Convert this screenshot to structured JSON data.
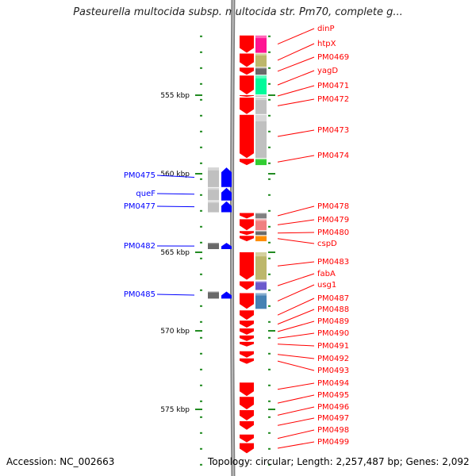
{
  "title": "Pasteurella multocida subsp. multocida str. Pm70, complete g...",
  "footer": {
    "accession": "Accession: NC_002663",
    "topology": "Topology: circular; Length: 2,257,487 bp; Genes: 2,092"
  },
  "colors": {
    "forward": "#ff0000",
    "reverse": "#0000ff",
    "axis_tick": "#228b22",
    "backbone": "#808080"
  },
  "chart_data": {
    "type": "genome-map",
    "kbp_range": [
      551.0,
      579.5
    ],
    "kbp_labels": [
      {
        "text": "555 kbp",
        "kbp": 555
      },
      {
        "text": "560 kbp",
        "kbp": 560
      },
      {
        "text": "565 kbp",
        "kbp": 565
      },
      {
        "text": "570 kbp",
        "kbp": 570
      },
      {
        "text": "575 kbp",
        "kbp": 575
      }
    ],
    "forward_genes": [
      {
        "name": "dinP",
        "start_kbp": 551.2,
        "end_kbp": 552.3,
        "cog_color": "#ff1493"
      },
      {
        "name": "htpX",
        "start_kbp": 552.35,
        "end_kbp": 553.2,
        "cog_color": "#bdb76b"
      },
      {
        "name": "PM0469",
        "start_kbp": 553.25,
        "end_kbp": 553.7,
        "cog_color": "#696969"
      },
      {
        "name": "yagD",
        "start_kbp": 553.75,
        "end_kbp": 554.95,
        "cog_color": "#00fa9a"
      },
      {
        "name": "PM0471",
        "start_kbp": 555.0,
        "end_kbp": 555.1,
        "cog_color": "#c0c0c0"
      },
      {
        "name": "PM0472",
        "start_kbp": 555.15,
        "end_kbp": 556.2,
        "cog_color": "#c0c0c0"
      },
      {
        "name": "PM0473",
        "start_kbp": 556.25,
        "end_kbp": 559.0,
        "cog_color": "#c0c0c0"
      },
      {
        "name": "PM0474",
        "start_kbp": 559.05,
        "end_kbp": 559.45,
        "cog_color": "#32cd32"
      },
      {
        "name": "PM0478",
        "start_kbp": 562.5,
        "end_kbp": 562.85,
        "cog_color": "#808080"
      },
      {
        "name": "PM0479",
        "start_kbp": 562.9,
        "end_kbp": 563.6,
        "cog_color": "#f08080"
      },
      {
        "name": "PM0480",
        "start_kbp": 563.65,
        "end_kbp": 563.9,
        "cog_color": "#696969"
      },
      {
        "name": "cspD",
        "start_kbp": 563.95,
        "end_kbp": 564.3,
        "cog_color": "#ff8c00"
      },
      {
        "name": "PM0483",
        "start_kbp": 565.0,
        "end_kbp": 566.75,
        "cog_color": "#bdb76b"
      },
      {
        "name": "fabA",
        "start_kbp": 566.85,
        "end_kbp": 567.4,
        "cog_color": "#6a5acd"
      },
      {
        "name": "usg1",
        "start_kbp": 567.6,
        "end_kbp": 568.6,
        "cog_color": "#4682b4"
      },
      {
        "name": "PM0487",
        "start_kbp": 568.7,
        "end_kbp": 569.3,
        "cog_color": ""
      },
      {
        "name": "PM0488",
        "start_kbp": 569.35,
        "end_kbp": 569.8,
        "cog_color": ""
      },
      {
        "name": "PM0489",
        "start_kbp": 569.85,
        "end_kbp": 570.25,
        "cog_color": ""
      },
      {
        "name": "PM0490",
        "start_kbp": 570.3,
        "end_kbp": 570.65,
        "cog_color": ""
      },
      {
        "name": "PM0491",
        "start_kbp": 570.7,
        "end_kbp": 571.0,
        "cog_color": ""
      },
      {
        "name": "PM0492",
        "start_kbp": 571.3,
        "end_kbp": 571.7,
        "cog_color": ""
      },
      {
        "name": "PM0493",
        "start_kbp": 571.75,
        "end_kbp": 572.1,
        "cog_color": ""
      },
      {
        "name": "PM0494",
        "start_kbp": 573.3,
        "end_kbp": 574.15,
        "cog_color": ""
      },
      {
        "name": "PM0495",
        "start_kbp": 574.2,
        "end_kbp": 575.0,
        "cog_color": ""
      },
      {
        "name": "PM0496",
        "start_kbp": 575.05,
        "end_kbp": 575.7,
        "cog_color": ""
      },
      {
        "name": "PM0497",
        "start_kbp": 575.75,
        "end_kbp": 576.3,
        "cog_color": ""
      },
      {
        "name": "PM0498",
        "start_kbp": 576.6,
        "end_kbp": 577.1,
        "cog_color": ""
      },
      {
        "name": "PM0499",
        "start_kbp": 577.15,
        "end_kbp": 577.8,
        "cog_color": ""
      }
    ],
    "reverse_genes": [
      {
        "name": "PM0475",
        "start_kbp": 559.6,
        "end_kbp": 560.85,
        "cog_color": "#c0c0c0"
      },
      {
        "name": "queF",
        "start_kbp": 560.9,
        "end_kbp": 561.7,
        "cog_color": "#c0c0c0"
      },
      {
        "name": "PM0477",
        "start_kbp": 561.75,
        "end_kbp": 562.45,
        "cog_color": "#c0c0c0"
      },
      {
        "name": "PM0482",
        "start_kbp": 564.4,
        "end_kbp": 564.8,
        "cog_color": "#696969"
      },
      {
        "name": "PM0485",
        "start_kbp": 567.5,
        "end_kbp": 567.95,
        "cog_color": "#696969"
      }
    ]
  }
}
